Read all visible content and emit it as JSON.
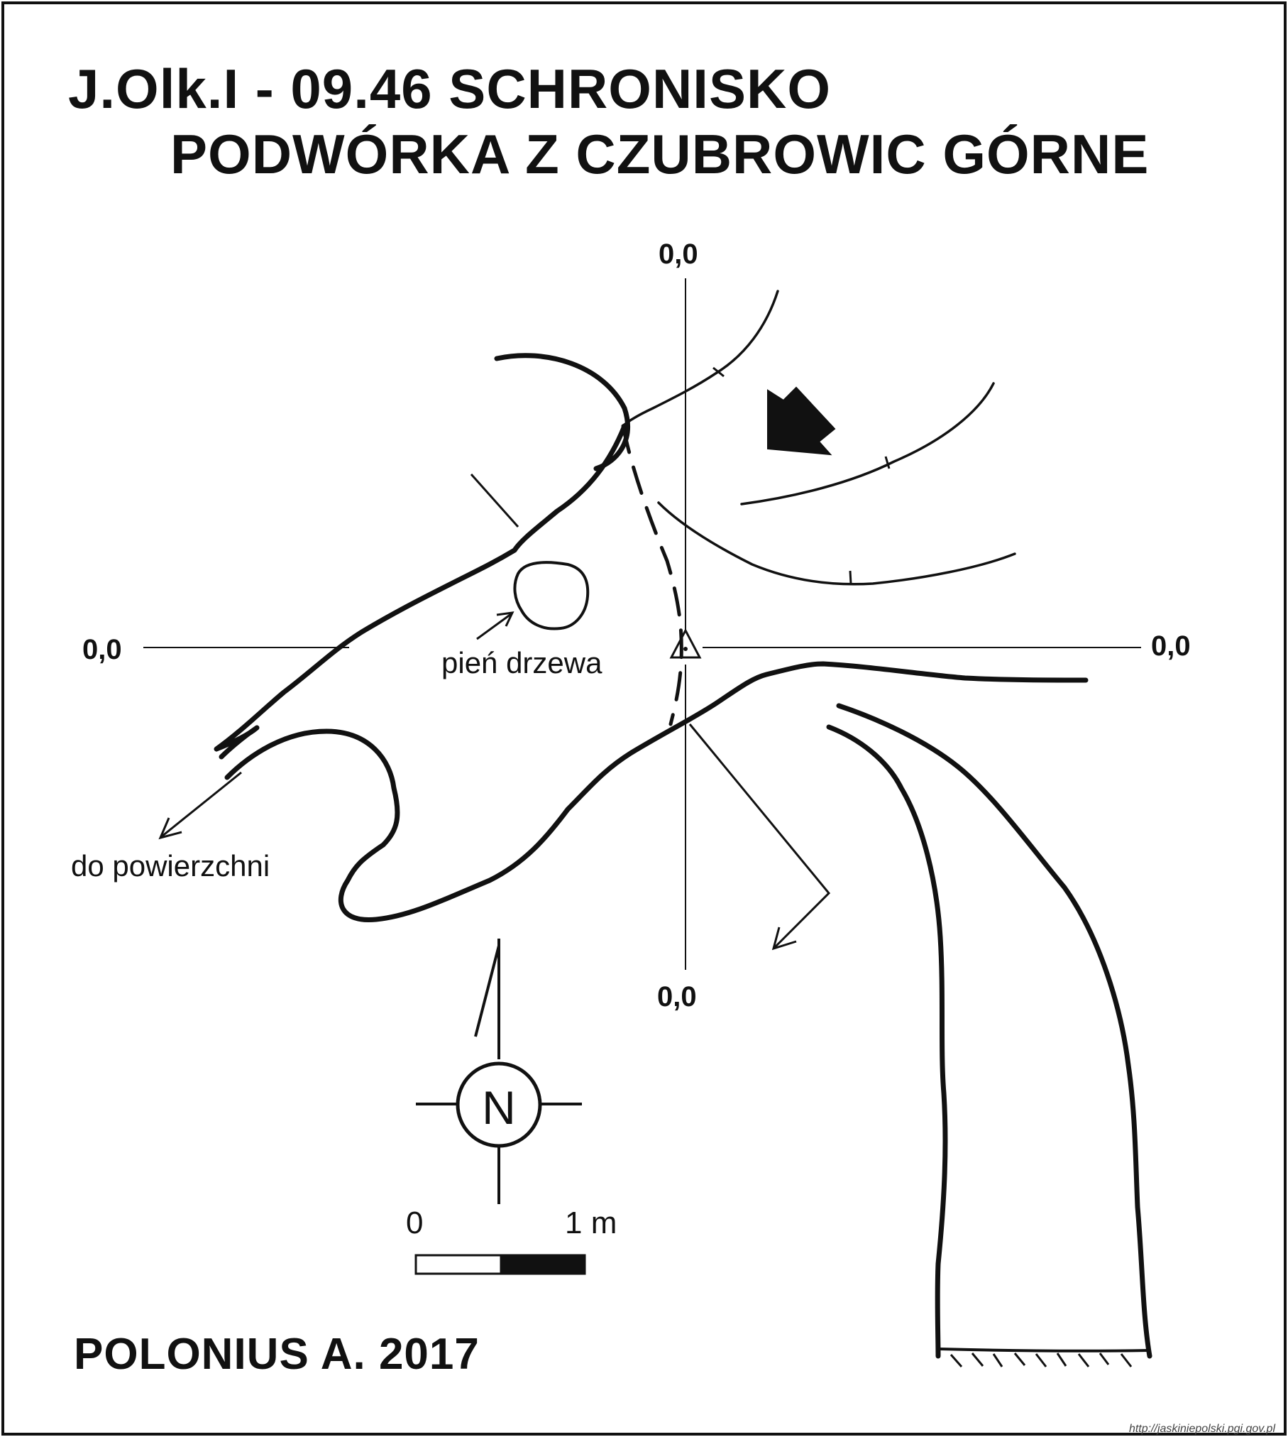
{
  "title": {
    "line1": "J.Olk.I - 09.46  SCHRONISKO",
    "line2": "PODWÓRKA Z CZUBROWIC GÓRNE"
  },
  "coordinates": {
    "top": "0,0",
    "left": "0,0",
    "right": "0,0",
    "bottom": "0,0"
  },
  "labels": {
    "tree_trunk": "pień drzewa",
    "to_surface": "do powierzchni"
  },
  "compass": {
    "letter": "N"
  },
  "scale_bar": {
    "start": "0",
    "end": "1 m"
  },
  "author": "POLONIUS A. 2017",
  "source_url": "http://jaskiniepolski.pgi.gov.pl",
  "colors": {
    "ink": "#111111",
    "background": "#ffffff"
  }
}
